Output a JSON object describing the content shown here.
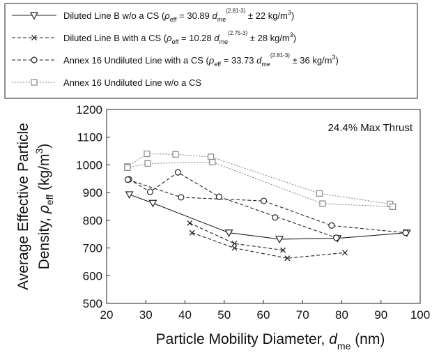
{
  "chart_data": {
    "type": "line",
    "annotation": "24.4% Max Thrust",
    "xlabel": {
      "main": "Particle Mobility Diameter, ",
      "sym": "d",
      "sub": "me",
      "unit": " (nm)"
    },
    "ylabel": {
      "line1": "Average Effective Particle",
      "line2_main": "Density, ",
      "line2_sym": "ρ",
      "line2_sub": "eff",
      "line2_unit": " (kg/m",
      "line2_sup": "3",
      "line2_close": ")"
    },
    "xlim": [
      20,
      100
    ],
    "ylim": [
      500,
      1200
    ],
    "x_ticks": [
      20,
      30,
      40,
      50,
      60,
      70,
      80,
      90,
      100
    ],
    "y_ticks": [
      500,
      600,
      700,
      800,
      900,
      1000,
      1100,
      1200
    ],
    "grid": false,
    "legend_position": "above-plot",
    "series": [
      {
        "id": "s1",
        "marker": "triangle-down",
        "linestyle": "solid",
        "color": "#222222",
        "legend": {
          "prefix": "Diluted Line B w/o a CS (",
          "rho": "ρ",
          "rho_sub": "eff",
          "mid": " = 30.89 ",
          "d": "d",
          "d_sub": "me",
          "exp": "(2.81-3)",
          "suffix": " ± 22 kg/m",
          "unit_sup": "3",
          "close": ")"
        },
        "groups": [
          [
            {
              "x": 25.8,
              "y": 893
            },
            {
              "x": 31.8,
              "y": 862
            },
            {
              "x": 51.2,
              "y": 755
            },
            {
              "x": 64.1,
              "y": 732
            },
            {
              "x": 78.9,
              "y": 735
            },
            {
              "x": 96.6,
              "y": 755
            }
          ]
        ]
      },
      {
        "id": "s2",
        "marker": "x",
        "linestyle": "dashed",
        "color": "#222222",
        "legend": {
          "prefix": "Diluted Line B with a CS (",
          "rho": "ρ",
          "rho_sub": "eff",
          "mid": " = 10.28 ",
          "d": "d",
          "d_sub": "me",
          "exp": "(2.75-3)",
          "suffix": " ± 28 kg/m",
          "unit_sup": "3",
          "close": ")"
        },
        "groups": [
          [
            {
              "x": 41.2,
              "y": 790
            },
            {
              "x": 52.6,
              "y": 716
            },
            {
              "x": 65.0,
              "y": 692
            }
          ],
          [
            {
              "x": 41.8,
              "y": 755
            },
            {
              "x": 52.6,
              "y": 700
            },
            {
              "x": 66.1,
              "y": 663
            },
            {
              "x": 80.8,
              "y": 683
            }
          ]
        ]
      },
      {
        "id": "s3",
        "marker": "circle",
        "linestyle": "dashed",
        "color": "#222222",
        "legend": {
          "prefix": "Annex 16 Undiluted Line with a CS (",
          "rho": "ρ",
          "rho_sub": "eff",
          "mid": " = 33.73 ",
          "d": "d",
          "d_sub": "me",
          "exp": "(2.81-3)",
          "suffix": " ± 36 kg/m",
          "unit_sup": "3",
          "close": ")"
        },
        "groups": [
          [
            {
              "x": 25.7,
              "y": 948
            },
            {
              "x": 31.1,
              "y": 903
            },
            {
              "x": 38.2,
              "y": 973
            },
            {
              "x": 48.7,
              "y": 885
            },
            {
              "x": 78.6,
              "y": 737
            }
          ],
          [
            {
              "x": 25.4,
              "y": 947
            },
            {
              "x": 39.0,
              "y": 883
            },
            {
              "x": 60.1,
              "y": 870
            },
            {
              "x": 77.4,
              "y": 781
            },
            {
              "x": 96.3,
              "y": 755
            }
          ],
          [
            {
              "x": 63.0,
              "y": 810
            }
          ]
        ]
      },
      {
        "id": "s4",
        "marker": "square",
        "linestyle": "dotted",
        "color": "#888888",
        "legend": {
          "prefix": "Annex 16 Undiluted Line w/o a CS",
          "rho": "",
          "rho_sub": "",
          "mid": "",
          "d": "",
          "d_sub": "",
          "exp": "",
          "suffix": "",
          "unit_sup": "",
          "close": ""
        },
        "groups": [
          [
            {
              "x": 25.3,
              "y": 994
            },
            {
              "x": 30.3,
              "y": 1040
            },
            {
              "x": 37.6,
              "y": 1038
            },
            {
              "x": 46.6,
              "y": 1029
            },
            {
              "x": 74.3,
              "y": 897
            },
            {
              "x": 92.3,
              "y": 859
            }
          ],
          [
            {
              "x": 25.3,
              "y": 990
            },
            {
              "x": 30.5,
              "y": 1005
            },
            {
              "x": 47.0,
              "y": 1010
            },
            {
              "x": 75.1,
              "y": 860
            },
            {
              "x": 93.0,
              "y": 849
            }
          ]
        ]
      }
    ]
  }
}
